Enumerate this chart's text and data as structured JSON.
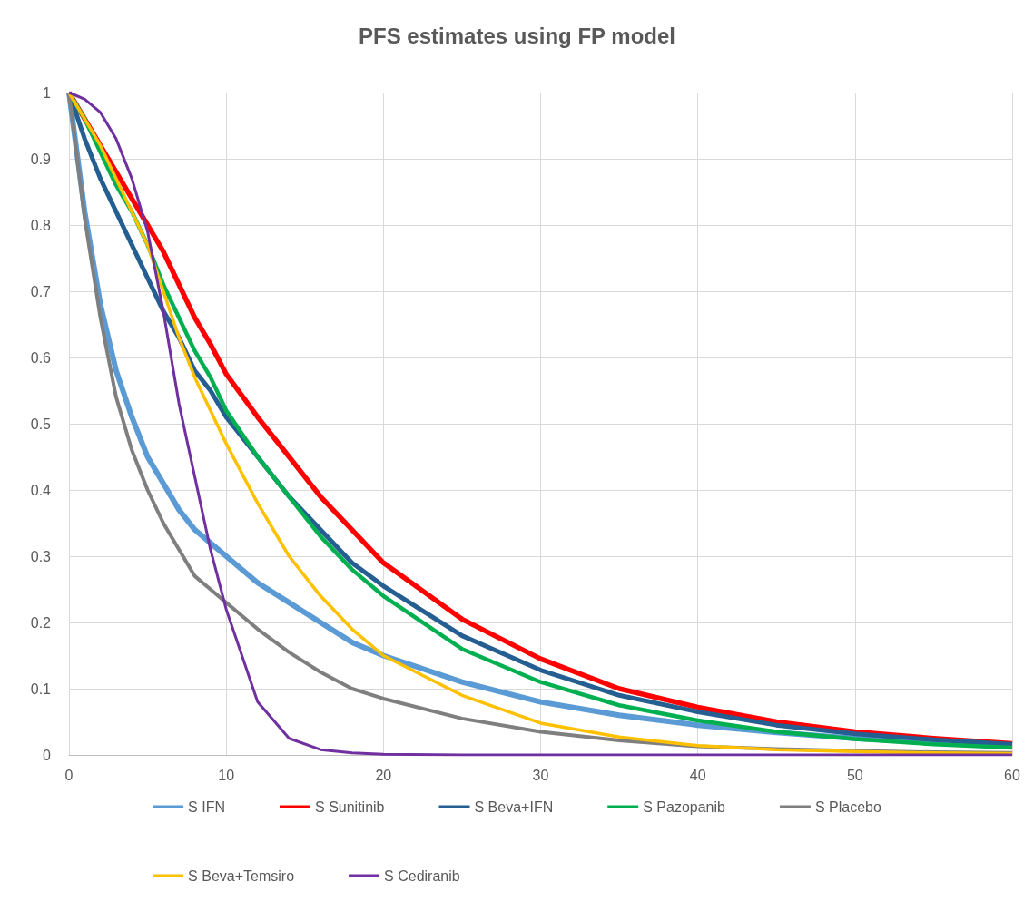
{
  "chart_data": {
    "type": "line",
    "title": "PFS estimates using FP model",
    "x": [
      0,
      1,
      2,
      3,
      4,
      5,
      6,
      7,
      8,
      9,
      10,
      12,
      14,
      16,
      18,
      20,
      25,
      30,
      35,
      40,
      45,
      50,
      55,
      60
    ],
    "xlim": [
      0,
      60
    ],
    "xticks": [
      0,
      10,
      20,
      30,
      40,
      50,
      60
    ],
    "ylim": [
      0,
      1
    ],
    "yticks": [
      0,
      0.1,
      0.2,
      0.3,
      0.4,
      0.5,
      0.6,
      0.7,
      0.8,
      0.9,
      1
    ],
    "grid": true,
    "legend": "bottom",
    "marker": "none",
    "line_style": "solid",
    "series": [
      {
        "name": "S IFN",
        "color": "#5b9bd5",
        "values": [
          1,
          0.82,
          0.68,
          0.58,
          0.51,
          0.45,
          0.41,
          0.37,
          0.34,
          0.32,
          0.3,
          0.26,
          0.23,
          0.2,
          0.17,
          0.15,
          0.11,
          0.08,
          0.06,
          0.045,
          0.034,
          0.025,
          0.019,
          0.015
        ]
      },
      {
        "name": "S Sunitinib",
        "color": "#ff0000",
        "values": [
          1,
          0.96,
          0.92,
          0.88,
          0.84,
          0.8,
          0.76,
          0.71,
          0.66,
          0.62,
          0.575,
          0.51,
          0.45,
          0.39,
          0.34,
          0.29,
          0.205,
          0.145,
          0.1,
          0.072,
          0.05,
          0.035,
          0.025,
          0.017
        ]
      },
      {
        "name": "S Beva+IFN",
        "color": "#255e91",
        "values": [
          1,
          0.93,
          0.87,
          0.82,
          0.77,
          0.72,
          0.67,
          0.63,
          0.58,
          0.55,
          0.51,
          0.45,
          0.39,
          0.34,
          0.29,
          0.255,
          0.18,
          0.128,
          0.09,
          0.065,
          0.045,
          0.032,
          0.023,
          0.016
        ]
      },
      {
        "name": "S Pazopanib",
        "color": "#00b050",
        "values": [
          1,
          0.96,
          0.91,
          0.86,
          0.82,
          0.77,
          0.71,
          0.66,
          0.61,
          0.57,
          0.52,
          0.45,
          0.39,
          0.33,
          0.28,
          0.24,
          0.16,
          0.11,
          0.075,
          0.052,
          0.035,
          0.024,
          0.016,
          0.011
        ]
      },
      {
        "name": "S Placebo",
        "color": "#7f7f7f",
        "values": [
          1,
          0.81,
          0.66,
          0.54,
          0.46,
          0.4,
          0.35,
          0.31,
          0.27,
          0.25,
          0.23,
          0.19,
          0.155,
          0.125,
          0.1,
          0.085,
          0.055,
          0.035,
          0.022,
          0.013,
          0.009,
          0.006,
          0.004,
          0.003
        ]
      },
      {
        "name": "S Beva+Temsiro",
        "color": "#ffc000",
        "values": [
          1,
          0.96,
          0.92,
          0.87,
          0.82,
          0.77,
          0.7,
          0.63,
          0.57,
          0.52,
          0.47,
          0.38,
          0.3,
          0.24,
          0.19,
          0.15,
          0.09,
          0.048,
          0.027,
          0.014,
          0.008,
          0.005,
          0.003,
          0.002
        ]
      },
      {
        "name": "S Cediranib",
        "color": "#7030a0",
        "values": [
          1,
          0.99,
          0.97,
          0.93,
          0.87,
          0.79,
          0.67,
          0.53,
          0.42,
          0.31,
          0.22,
          0.08,
          0.025,
          0.008,
          0.003,
          0.001,
          0,
          0,
          0,
          0,
          0,
          0,
          0,
          0
        ]
      }
    ]
  }
}
